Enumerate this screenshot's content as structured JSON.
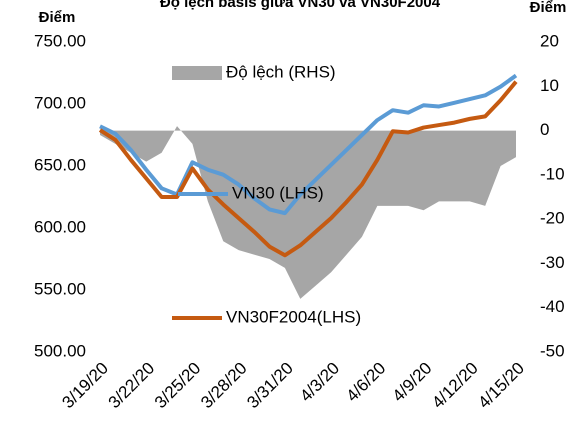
{
  "chart_data": {
    "type": "line",
    "title": "Độ lệch basis giữa VN30 và VN30F2004",
    "y_label": "Điểm",
    "y2_label": "Điểm",
    "categories": [
      "3/19/20",
      null,
      null,
      "3/22/20",
      null,
      null,
      "3/25/20",
      null,
      null,
      "3/28/20",
      null,
      null,
      "3/31/20",
      null,
      null,
      "4/3/20",
      null,
      null,
      "4/6/20",
      null,
      null,
      "4/9/20",
      null,
      null,
      "4/12/20",
      null,
      null,
      "4/15/20"
    ],
    "ylim": [
      500,
      750
    ],
    "yticks": [
      {
        "value": 500,
        "label": "500.00"
      },
      {
        "value": 550,
        "label": "550.00"
      },
      {
        "value": 600,
        "label": "600.00"
      },
      {
        "value": 650,
        "label": "650.00"
      },
      {
        "value": 700,
        "label": "700.00"
      },
      {
        "value": 750,
        "label": "750.00"
      }
    ],
    "y2lim": [
      -50,
      20
    ],
    "y2ticks": [
      -50,
      -40,
      -30,
      -20,
      -10,
      0,
      10,
      20
    ],
    "series": [
      {
        "name": "Độ lệch (RHS)",
        "type": "area",
        "axis": "y2",
        "color": "#a6a6a6",
        "values": [
          -1,
          -3,
          -5,
          -7,
          -5,
          1,
          -3,
          -16,
          -25,
          -27,
          -28,
          -29,
          -31,
          -38,
          -35,
          -32,
          -28,
          -24,
          -17,
          -17,
          -17,
          -18,
          -16,
          -16,
          -16,
          -17,
          -8,
          -6
        ]
      },
      {
        "name": "VN30 (LHS)",
        "type": "line",
        "color": "#5b9bd5",
        "values": [
          682,
          676,
          663,
          647,
          632,
          627,
          653,
          647,
          643,
          635,
          624,
          615,
          612,
          627,
          639,
          651,
          663,
          675,
          687,
          695,
          693,
          699,
          698,
          701,
          704,
          707,
          714,
          723
        ]
      },
      {
        "name": "VN30F2004(LHS)",
        "type": "line",
        "color": "#c55a11",
        "values": [
          679,
          671,
          655,
          640,
          625,
          625,
          648,
          631,
          619,
          608,
          597,
          585,
          578,
          586,
          597,
          608,
          621,
          635,
          655,
          678,
          677,
          681,
          683,
          685,
          688,
          690,
          703,
          718
        ]
      }
    ]
  }
}
